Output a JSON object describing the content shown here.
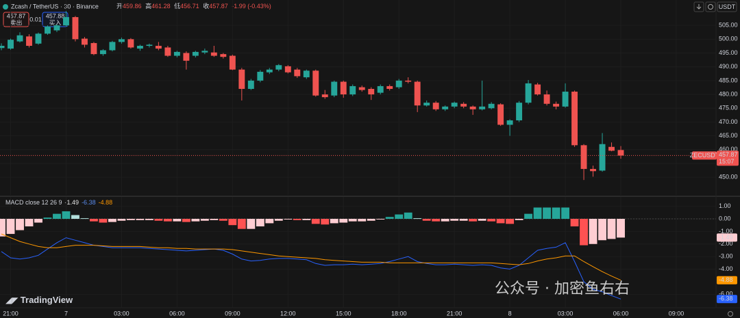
{
  "chart_data": [
    {
      "type": "candlestick",
      "title": "Zcash / TetherUS · 30 · Binance",
      "ohlc_names": [
        "开",
        "高",
        "低",
        "收"
      ],
      "change": "-1.99 (-0.43%)",
      "symbol": "ZECUSDT",
      "countdown": "15:07",
      "bid": 457.87,
      "bid_label": "卖出",
      "spread": 0.01,
      "ask": 457.88,
      "ask_label": "买入",
      "currency": "USDT",
      "up_color": "#26a69a",
      "down_color": "#ef5350",
      "xlim": [
        -0.15,
        77.3
      ],
      "ylim": [
        443.6,
        514.2
      ],
      "yticks": [
        {
          "value": 450,
          "label": "450.00"
        },
        {
          "value": 455,
          "label": "455.00"
        },
        {
          "value": 460,
          "label": "460.00"
        },
        {
          "value": 465,
          "label": "465.00"
        },
        {
          "value": 470,
          "label": "470.00"
        },
        {
          "value": 475,
          "label": "475.00"
        },
        {
          "value": 480,
          "label": "480.00"
        },
        {
          "value": 485,
          "label": "485.00"
        },
        {
          "value": 490,
          "label": "490.00"
        },
        {
          "value": 495,
          "label": "495.00"
        },
        {
          "value": 500,
          "label": "500.00"
        },
        {
          "value": 505,
          "label": "505.00"
        }
      ],
      "grid": true,
      "open": [
        496.8,
        496.6,
        499.2,
        501.0,
        498.4,
        502.0,
        503.2,
        505.0,
        508.0,
        500.2,
        498.6,
        494.6,
        496.0,
        499.0,
        500.0,
        496.6,
        497.6,
        497.6,
        497.0,
        494.0,
        495.0,
        494.0,
        495.2,
        495.2,
        494.6,
        494.0,
        489.0,
        482.0,
        485.0,
        488.0,
        489.0,
        490.2,
        489.0,
        486.2,
        488.6,
        480.0,
        479.6,
        484.6,
        480.0,
        482.6,
        482.0,
        480.6,
        483.0,
        482.6,
        485.0,
        484.6,
        476.0,
        477.0,
        474.6,
        475.6,
        476.6,
        475.6,
        474.6,
        475.0,
        476.4,
        469.0,
        470.6,
        477.0,
        483.6,
        480.0,
        476.6,
        475.6,
        481.0,
        461.6,
        453.0,
        452.4,
        461.0,
        459.86
      ],
      "high": [
        498.5,
        500.2,
        502.5,
        501.8,
        502.4,
        505.0,
        505.4,
        510.2,
        508.4,
        500.8,
        499.0,
        496.4,
        499.4,
        500.6,
        500.4,
        498.0,
        498.4,
        499.0,
        497.6,
        495.8,
        495.6,
        495.8,
        496.6,
        497.6,
        495.0,
        494.4,
        489.6,
        485.6,
        488.8,
        489.6,
        491.0,
        490.6,
        489.6,
        489.0,
        489.0,
        481.6,
        485.0,
        485.0,
        483.6,
        483.2,
        482.6,
        483.6,
        483.6,
        485.6,
        486.2,
        485.0,
        477.8,
        477.6,
        476.0,
        477.4,
        477.2,
        476.0,
        485.0,
        477.2,
        476.8,
        471.0,
        477.6,
        485.2,
        484.2,
        481.4,
        477.4,
        484.0,
        481.4,
        462.0,
        454.2,
        466.0,
        462.6,
        461.28
      ],
      "low": [
        496.0,
        496.2,
        498.8,
        497.0,
        498.0,
        501.6,
        502.6,
        504.6,
        499.2,
        497.0,
        494.2,
        494.0,
        495.6,
        498.4,
        496.6,
        495.8,
        497.0,
        496.0,
        493.6,
        493.4,
        489.0,
        493.4,
        494.6,
        493.6,
        493.0,
        488.8,
        477.8,
        481.6,
        484.4,
        487.4,
        488.4,
        487.6,
        486.0,
        485.6,
        479.2,
        478.4,
        479.0,
        478.8,
        479.4,
        481.0,
        478.0,
        480.0,
        481.4,
        482.0,
        484.0,
        473.6,
        475.6,
        474.0,
        474.0,
        475.0,
        475.0,
        472.6,
        474.2,
        474.6,
        468.6,
        465.0,
        470.0,
        476.4,
        479.6,
        476.0,
        474.6,
        475.2,
        461.0,
        449.0,
        450.2,
        452.0,
        459.4,
        456.71
      ],
      "close": [
        497.6,
        499.8,
        501.4,
        497.6,
        502.0,
        504.6,
        505.0,
        508.0,
        500.0,
        498.0,
        494.6,
        496.0,
        499.0,
        500.0,
        497.0,
        497.6,
        498.0,
        496.6,
        494.0,
        495.4,
        492.2,
        495.4,
        495.8,
        494.0,
        493.6,
        489.0,
        482.0,
        485.0,
        488.2,
        489.0,
        490.6,
        488.0,
        486.6,
        488.6,
        479.6,
        479.0,
        484.6,
        480.0,
        483.0,
        481.6,
        480.0,
        483.0,
        482.0,
        485.0,
        484.6,
        476.0,
        477.0,
        474.6,
        475.6,
        477.0,
        475.6,
        474.6,
        475.6,
        476.6,
        469.0,
        470.6,
        477.0,
        484.0,
        480.0,
        476.6,
        475.6,
        481.0,
        461.6,
        453.0,
        452.2,
        462.0,
        459.6,
        457.87
      ]
    },
    {
      "type": "macd",
      "title": "MACD close 12 26 9",
      "xlim": [
        -0.15,
        77.3
      ],
      "ylim": [
        -7.07,
        1.74
      ],
      "yticks": [
        {
          "value": 1,
          "label": "1.00"
        },
        {
          "value": 0,
          "label": "0.00"
        },
        {
          "value": -1,
          "label": "-1.00"
        },
        {
          "value": -2,
          "label": "-2.00"
        },
        {
          "value": -3,
          "label": "-3.00"
        },
        {
          "value": -4,
          "label": "-4.00"
        },
        {
          "value": -6,
          "label": "-6.00"
        }
      ],
      "xticks": [
        {
          "value": 1,
          "label": "21:00"
        },
        7,
        {
          "value": 13,
          "label": "03:00"
        },
        {
          "value": 19,
          "label": "06:00"
        },
        {
          "value": 25,
          "label": "09:00"
        },
        {
          "value": 31,
          "label": "12:00"
        },
        {
          "value": 37,
          "label": "15:00"
        },
        {
          "value": 43,
          "label": "18:00"
        },
        {
          "value": 49,
          "label": "21:00"
        },
        {
          "value": 55,
          "label": "8"
        },
        {
          "value": 61,
          "label": "03:00"
        },
        {
          "value": 67,
          "label": "06:00"
        },
        {
          "value": 73,
          "label": "09:00"
        }
      ],
      "grid": true,
      "histogram": {
        "palette": {
          "rise_up": "#26a69a",
          "fall_up": "#b2dfdb",
          "fall_down": "#ff5252",
          "rise_down": "#ffcdd2"
        },
        "values": [
          -1.4,
          -1.2,
          -0.9,
          -0.6,
          -0.3,
          0.1,
          0.4,
          0.6,
          0.3,
          0.05,
          -0.2,
          -0.3,
          -0.25,
          -0.15,
          -0.1,
          -0.1,
          -0.1,
          -0.15,
          -0.2,
          -0.2,
          -0.25,
          -0.2,
          -0.15,
          -0.1,
          -0.15,
          -0.5,
          -0.8,
          -0.8,
          -0.6,
          -0.35,
          -0.15,
          -0.05,
          -0.1,
          -0.1,
          -0.4,
          -0.45,
          -0.35,
          -0.3,
          -0.2,
          -0.2,
          -0.15,
          -0.05,
          0.15,
          0.35,
          0.5,
          0.05,
          -0.15,
          -0.2,
          -0.2,
          -0.15,
          -0.15,
          -0.2,
          -0.15,
          -0.2,
          -0.35,
          -0.4,
          -0.1,
          0.4,
          0.9,
          0.9,
          0.9,
          0.9,
          -0.6,
          -2.1,
          -2.0,
          -1.7,
          -1.6,
          -1.49
        ]
      },
      "series": [
        {
          "color": "#2962ff",
          "values": [
            -2.6,
            -3.1,
            -3.2,
            -3.1,
            -2.9,
            -2.4,
            -1.9,
            -1.5,
            -1.7,
            -1.9,
            -2.1,
            -2.2,
            -2.3,
            -2.3,
            -2.3,
            -2.3,
            -2.35,
            -2.4,
            -2.45,
            -2.5,
            -2.55,
            -2.5,
            -2.45,
            -2.4,
            -2.5,
            -2.8,
            -3.2,
            -3.35,
            -3.3,
            -3.2,
            -3.15,
            -3.15,
            -3.2,
            -3.25,
            -3.55,
            -3.7,
            -3.65,
            -3.65,
            -3.6,
            -3.65,
            -3.6,
            -3.55,
            -3.4,
            -3.2,
            -3.0,
            -3.4,
            -3.55,
            -3.65,
            -3.65,
            -3.6,
            -3.65,
            -3.7,
            -3.65,
            -3.7,
            -3.9,
            -4.0,
            -3.7,
            -3.1,
            -2.5,
            -2.35,
            -2.25,
            -1.9,
            -3.4,
            -5.0,
            -5.6,
            -5.8,
            -6.1,
            -6.38
          ]
        },
        {
          "color": "#ff9800",
          "values": [
            -1.2,
            -1.5,
            -1.8,
            -2.0,
            -2.2,
            -2.3,
            -2.3,
            -2.2,
            -2.1,
            -2.1,
            -2.1,
            -2.15,
            -2.2,
            -2.2,
            -2.2,
            -2.2,
            -2.25,
            -2.3,
            -2.3,
            -2.35,
            -2.35,
            -2.4,
            -2.4,
            -2.4,
            -2.4,
            -2.45,
            -2.55,
            -2.65,
            -2.75,
            -2.85,
            -2.95,
            -3.0,
            -3.05,
            -3.1,
            -3.15,
            -3.25,
            -3.3,
            -3.35,
            -3.4,
            -3.45,
            -3.45,
            -3.45,
            -3.5,
            -3.5,
            -3.5,
            -3.5,
            -3.5,
            -3.5,
            -3.5,
            -3.5,
            -3.5,
            -3.5,
            -3.5,
            -3.5,
            -3.55,
            -3.6,
            -3.65,
            -3.55,
            -3.35,
            -3.2,
            -3.1,
            -2.95,
            -2.95,
            -3.4,
            -3.8,
            -4.2,
            -4.55,
            -4.88
          ]
        }
      ]
    }
  ],
  "watermark": "公众号 · 加密鱼右右",
  "brand": "TradingView"
}
